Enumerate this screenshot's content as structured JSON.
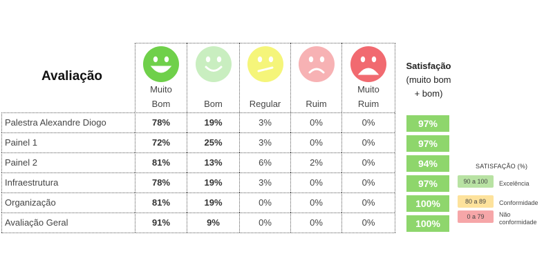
{
  "title": "Avaliação",
  "columns": [
    {
      "label_line1": "Muito",
      "label_line2": "Bom",
      "face": "very-happy",
      "color": "#6fd04a"
    },
    {
      "label_line1": "",
      "label_line2": "Bom",
      "face": "happy",
      "color": "#c9eec0"
    },
    {
      "label_line1": "",
      "label_line2": "Regular",
      "face": "neutral",
      "color": "#f5f57a"
    },
    {
      "label_line1": "",
      "label_line2": "Ruim",
      "face": "sad",
      "color": "#f7b2b4"
    },
    {
      "label_line1": "Muito",
      "label_line2": "Ruim",
      "face": "very-sad",
      "color": "#f16a70"
    }
  ],
  "satisfaction_header": {
    "line1": "Satisfação",
    "line2": "(muito bom",
    "line3": "+ bom)"
  },
  "rows": [
    {
      "label": "Palestra Alexandre Diogo",
      "values": [
        "78%",
        "19%",
        "3%",
        "0%",
        "0%"
      ],
      "satisfaction": "97%"
    },
    {
      "label": "Painel 1",
      "values": [
        "72%",
        "25%",
        "3%",
        "0%",
        "0%"
      ],
      "satisfaction": "97%"
    },
    {
      "label": "Painel 2",
      "values": [
        "81%",
        "13%",
        "6%",
        "2%",
        "0%"
      ],
      "satisfaction": "94%"
    },
    {
      "label": "Infraestrutura",
      "values": [
        "78%",
        "19%",
        "3%",
        "0%",
        "0%"
      ],
      "satisfaction": "97%"
    },
    {
      "label": "Organização",
      "values": [
        "81%",
        "19%",
        "0%",
        "0%",
        "0%"
      ],
      "satisfaction": "100%"
    },
    {
      "label": "Avaliação Geral",
      "values": [
        "91%",
        "9%",
        "0%",
        "0%",
        "0%"
      ],
      "satisfaction": "100%"
    }
  ],
  "legend": {
    "title": "SATISFAÇÃO (%)",
    "items": [
      {
        "range": "90 a 100",
        "text_line1": "Excelência",
        "text_line2": "",
        "color": "#b8e2a3"
      },
      {
        "range": "80 a 89",
        "text_line1": "Conformidade",
        "text_line2": "",
        "color": "#fde29c"
      },
      {
        "range": "0 a 79",
        "text_line1": "Não",
        "text_line2": "conformidade",
        "color": "#f6a6a8"
      }
    ]
  },
  "accent_green": "#8ed66c"
}
